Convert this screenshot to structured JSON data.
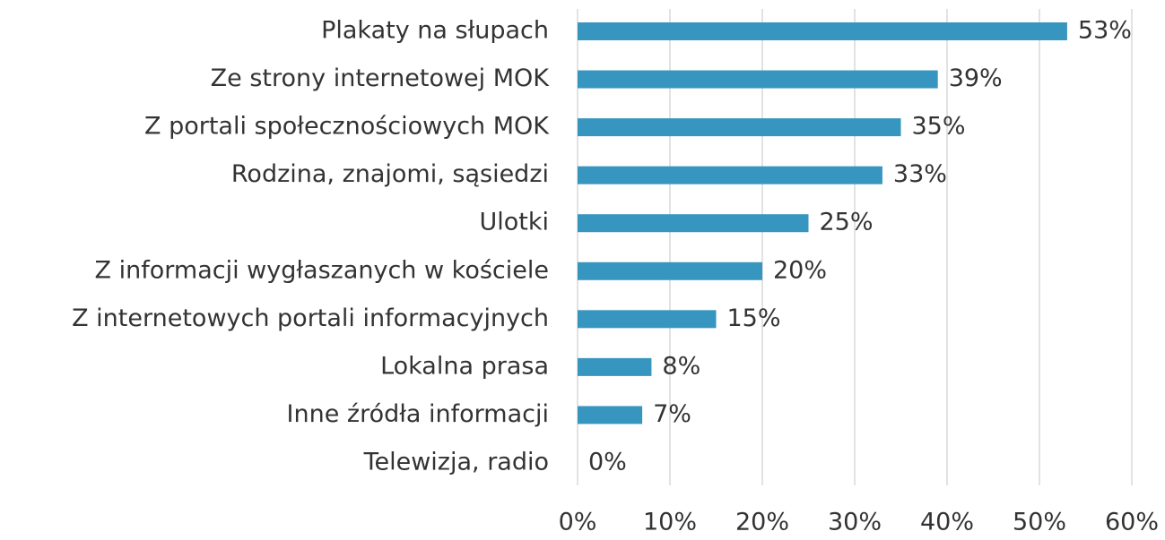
{
  "chart_data": {
    "type": "bar",
    "orientation": "horizontal",
    "categories": [
      "Plakaty na słupach",
      "Ze strony internetowej MOK",
      "Z portali społecznościowych MOK",
      "Rodzina, znajomi, sąsiedzi",
      "Ulotki",
      "Z informacji wygłaszanych w kościele",
      "Z internetowych portali informacyjnych",
      "Lokalna prasa",
      "Inne źródła informacji",
      "Telewizja, radio"
    ],
    "values": [
      53,
      39,
      35,
      33,
      25,
      20,
      15,
      8,
      7,
      0
    ],
    "value_labels": [
      "53%",
      "39%",
      "35%",
      "33%",
      "25%",
      "20%",
      "15%",
      "8%",
      "7%",
      "0%"
    ],
    "color": "#3696bf",
    "xlim": [
      0,
      60
    ],
    "xticks": [
      {
        "value": 0,
        "label": "0%"
      },
      {
        "value": 10,
        "label": "10%"
      },
      {
        "value": 20,
        "label": "20%"
      },
      {
        "value": 30,
        "label": "30%"
      },
      {
        "value": 40,
        "label": "40%"
      },
      {
        "value": 50,
        "label": "50%"
      },
      {
        "value": 60,
        "label": "60%"
      }
    ],
    "grid": true
  }
}
